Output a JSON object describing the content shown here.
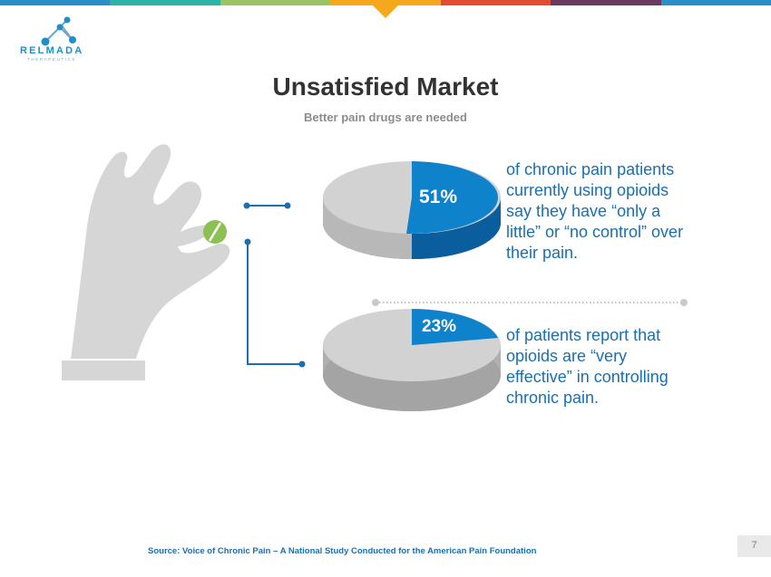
{
  "brand": {
    "name": "RELMADA",
    "tagline": "THERAPEUTICS"
  },
  "header": {
    "title": "Unsatisfied Market",
    "subtitle": "Better pain drugs are needed"
  },
  "stats": [
    {
      "value": "51%",
      "fraction": 0.51,
      "text": "of chronic pain patients currently using opioids say they have “only a little” or “no control” over their pain."
    },
    {
      "value": "23%",
      "fraction": 0.23,
      "text": "of patients report that opioids are “very effective” in controlling chronic pain."
    }
  ],
  "footer": {
    "source": "Source: Voice of Chronic Pain – A National Study Conducted for the American Pain Foundation",
    "page": "7"
  },
  "colors": {
    "bar": [
      "#2a8fc9",
      "#2bb3a5",
      "#9cc266",
      "#f6a81c",
      "#e04e2e",
      "#6b3a5e",
      "#2a8fc9"
    ],
    "accent_blue": "#0f82cc",
    "text_blue": "#1a6faf",
    "pie_gray": "#cfcfcf",
    "hand_gray": "#d6d6d6"
  },
  "icons": [
    "molecule-logo-icon",
    "hand-holding-pill-icon",
    "pill-icon"
  ]
}
